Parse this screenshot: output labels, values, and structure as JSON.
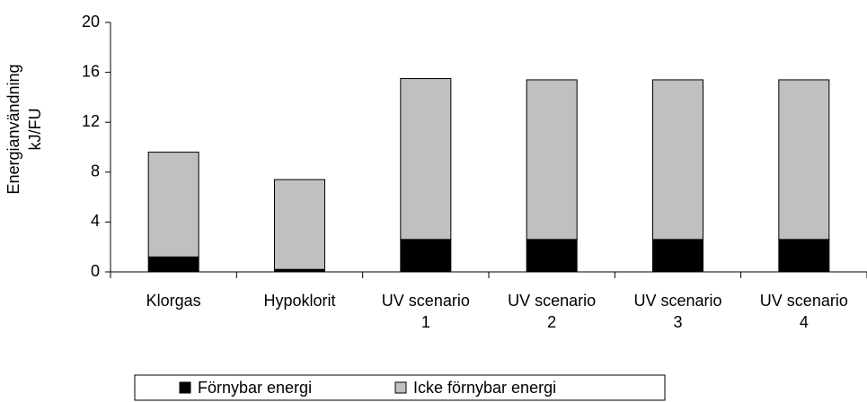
{
  "chart_data": {
    "type": "stacked_bar",
    "ylabel": "Energianvändning kJ/FU",
    "categories": [
      "Klorgas",
      "Hypoklorit",
      "UV scenario 1",
      "UV scenario 2",
      "UV scenario 3",
      "UV scenario 4"
    ],
    "series": [
      {
        "name": "Förnybar energi",
        "color": "#000000",
        "values": [
          1.2,
          0.2,
          2.6,
          2.6,
          2.6,
          2.6
        ]
      },
      {
        "name": "Icke förnybar energi",
        "color": "#c0c0c0",
        "values": [
          8.4,
          7.2,
          12.9,
          12.8,
          12.8,
          12.8
        ]
      }
    ],
    "ylim": [
      0,
      20
    ],
    "yticks": [
      0,
      4,
      8,
      12,
      16,
      20
    ],
    "grid": false,
    "legend": "bottom"
  }
}
